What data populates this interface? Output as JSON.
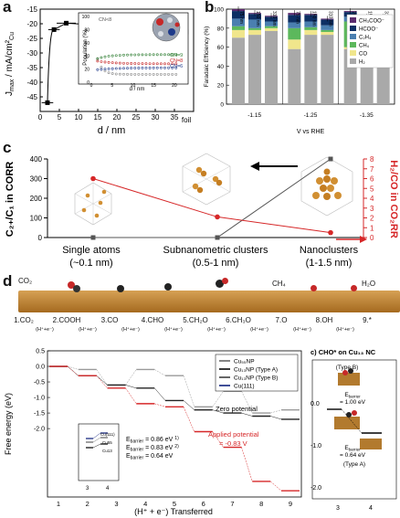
{
  "figure": {
    "panel_labels": [
      "a",
      "b",
      "c",
      "d"
    ]
  },
  "panel_a": {
    "ylabel_main": "J",
    "ylabel_sub": "max",
    "ylabel_rest": " / mA/cm²",
    "ylabel_cu": "Cu",
    "xlabel": "d / nm",
    "foil_label": "foil",
    "inset_ylabel": "Population (%)",
    "inset_xlabel": "d / nm",
    "cn_labels": [
      "CN<8",
      "CN=9",
      "CN=8",
      "CN=6"
    ],
    "colors": {
      "main": "#000000",
      "cn_lt8": "#888888",
      "cn9": "#2e7d32",
      "cn8": "#c62828",
      "cn6": "#1e3a8a"
    }
  },
  "panel_b": {
    "ylabel": "Faradaic Efficiency (%)",
    "xlabel": "V vs RHE",
    "legend": [
      {
        "label": "CH₃COO⁻",
        "color": "#5b2b6e"
      },
      {
        "label": "HCOO⁻",
        "color": "#0d2f64"
      },
      {
        "label": "C₂H₄",
        "color": "#4a7fb0"
      },
      {
        "label": "CH₄",
        "color": "#5cb85c"
      },
      {
        "label": "CO",
        "color": "#f0e68c"
      },
      {
        "label": "H₂",
        "color": "#a9a9a9"
      }
    ],
    "size_labels": [
      "75 nm",
      "150 nm",
      "310 nm"
    ]
  },
  "panel_c": {
    "ylabel_left": "C₂₊/C₁ in CORR",
    "ylabel_right": "H₂/CO in CO₂RR",
    "categories": [
      {
        "name": "Single atoms",
        "size": "(~0.1 nm)"
      },
      {
        "name": "Subnanometric clusters",
        "size": "(0.5-1 nm)"
      },
      {
        "name": "Nanoclusters",
        "size": "(1-1.5 nm)"
      }
    ],
    "colors": {
      "left": "#555555",
      "right": "#d62728"
    }
  },
  "panel_d": {
    "steps": [
      {
        "label": "1.CO₂",
        "sub": ""
      },
      {
        "label": "2.COOH",
        "sub": "(H⁺+e⁻)"
      },
      {
        "label": "3.CO",
        "sub": "(H⁺+e⁻)"
      },
      {
        "label": "4.CHO",
        "sub": "(H⁺+e⁻)"
      },
      {
        "label": "5.CH₂O",
        "sub": "(H⁺+e⁻)"
      },
      {
        "label": "6.CH₃O",
        "sub": "(H⁺+e⁻)"
      },
      {
        "label": "7.O",
        "sub": "(H⁺+e⁻)"
      },
      {
        "label": "8.OH",
        "sub": "(H⁺+e⁻)"
      },
      {
        "label": "9.*",
        "sub": "(H⁺+e⁻)"
      }
    ],
    "species_top": [
      "CO₂",
      "CH₄",
      "H₂O"
    ],
    "ylabel": "Free energy (eV)",
    "xlabel": "(H⁺ + e⁻) Transferred",
    "legend": [
      {
        "label": "Cu₅₅NP",
        "color": "#777777"
      },
      {
        "label": "Cu₁₃NP (Type A)",
        "color": "#222222"
      },
      {
        "label": "Cu₁₃NP (Type B)",
        "color": "#555555"
      },
      {
        "label": "Cu(111)",
        "color": "#2b3a8c"
      }
    ],
    "zero_potential": "Zero potential",
    "applied_potential": "Applied potential",
    "applied_value": "= -0.83 V",
    "inset_labels": [
      "Cu(111)",
      "Cu55",
      "Cu13"
    ],
    "ebarrier_label": "E",
    "ebarrier_sub": "barrier",
    "barriers": [
      "= 0.86 eV",
      "= 0.83 eV",
      "= 0.64 eV"
    ],
    "barrier_marks": [
      "1)",
      "2)"
    ],
    "sub_title": "c) CHO* on Cu₁₃ NC",
    "type_b": "(Type B)",
    "type_a": "(Type A)",
    "sub_barrier_b": "= 1.00 eV",
    "sub_barrier_a": "= 0.64 eV",
    "sub_yticks": [
      "0.0",
      "-1.0",
      "-2.0"
    ],
    "sub_xticks": [
      "3",
      "4"
    ]
  },
  "chart_data": [
    {
      "type": "scatter",
      "panel": "a",
      "xlabel": "d / nm",
      "ylabel": "Jmax / mA/cm² Cu",
      "xlim": [
        0,
        40
      ],
      "ylim": [
        -50,
        -15
      ],
      "xticks": [
        0,
        5,
        10,
        15,
        20,
        25,
        30,
        35
      ],
      "yticks": [
        -45,
        -40,
        -35,
        -30,
        -25,
        -20,
        -15
      ],
      "x": [
        1.9,
        3.6,
        6.8,
        15.8
      ],
      "y": [
        -47,
        -22,
        -19.8,
        -20.5
      ],
      "foil_value": -22.8
    },
    {
      "type": "bar",
      "panel": "b",
      "ylabel": "Faradaic Efficiency (%)",
      "xlabel": "V vs RHE",
      "ylim": [
        0,
        100
      ],
      "yticks": [
        0,
        20,
        40,
        60,
        80,
        100
      ],
      "groups": [
        "-1.15",
        "-1.25",
        "-1.35"
      ],
      "categories": [
        "75 nm",
        "150 nm",
        "310 nm"
      ],
      "series": [
        {
          "name": "H₂",
          "values": [
            [
              70,
              73,
              77
            ],
            [
              58,
              73,
              73
            ],
            [
              58,
              65,
              70
            ]
          ]
        },
        {
          "name": "CO",
          "values": [
            [
              8,
              5,
              3
            ],
            [
              10,
              5,
              3
            ],
            [
              2,
              2,
              2
            ]
          ]
        },
        {
          "name": "CH₄",
          "values": [
            [
              4,
              2,
              2
            ],
            [
              12,
              3,
              2
            ],
            [
              27,
              13,
              10
            ]
          ]
        },
        {
          "name": "C₂H₄",
          "values": [
            [
              8,
              9,
              5
            ],
            [
              6,
              6,
              5
            ],
            [
              5,
              6,
              5
            ]
          ]
        },
        {
          "name": "HCOO⁻",
          "values": [
            [
              8,
              6,
              5
            ],
            [
              8,
              7,
              6
            ],
            [
              5,
              5,
              4
            ]
          ]
        },
        {
          "name": "CH₃COO⁻",
          "values": [
            [
              2,
              1,
              1
            ],
            [
              2,
              1,
              1
            ],
            [
              1,
              1,
              1
            ]
          ]
        }
      ]
    },
    {
      "type": "line",
      "panel": "c",
      "categories": [
        "Single atoms",
        "Subnanometric clusters",
        "Nanoclusters"
      ],
      "ylabel_left": "C₂₊/C₁ in CORR",
      "ylabel_right": "H₂/CO in CO₂RR",
      "yticks_left": [
        0,
        100,
        200,
        300,
        400
      ],
      "yticks_right": [
        0,
        1,
        2,
        3,
        4,
        5,
        6,
        7,
        8
      ],
      "series": [
        {
          "name": "C₂₊/C₁ in CORR",
          "axis": "left",
          "values": [
            0,
            0,
            400
          ]
        },
        {
          "name": "H₂/CO in CO₂RR",
          "axis": "right",
          "values": [
            6,
            2.1,
            0.5
          ]
        }
      ]
    },
    {
      "type": "line",
      "panel": "d",
      "xlabel": "(H⁺ + e⁻) Transferred",
      "ylabel": "Free energy (eV)",
      "xticks": [
        1,
        2,
        3,
        4,
        5,
        6,
        7,
        8,
        9
      ],
      "yticks": [
        -2.0,
        -1.5,
        -1.0,
        -0.5,
        0.0,
        0.5
      ],
      "series": [
        {
          "name": "Cu₅₅NP",
          "values": [
            0.0,
            -0.1,
            -0.6,
            -0.1,
            -0.3,
            -1.3,
            -0.8,
            -1.5,
            -1.4
          ]
        },
        {
          "name": "Cu₁₃NP (Type A)",
          "values": [
            0.0,
            -0.3,
            -0.6,
            -0.7,
            -1.1,
            -1.4,
            -1.5,
            -1.6,
            -1.7
          ]
        },
        {
          "name": "Applied potential",
          "values": [
            0.0,
            -0.3,
            -0.7,
            -1.2,
            -1.3,
            -2.1,
            -2.6,
            -3.7,
            -4.0
          ]
        }
      ]
    }
  ]
}
